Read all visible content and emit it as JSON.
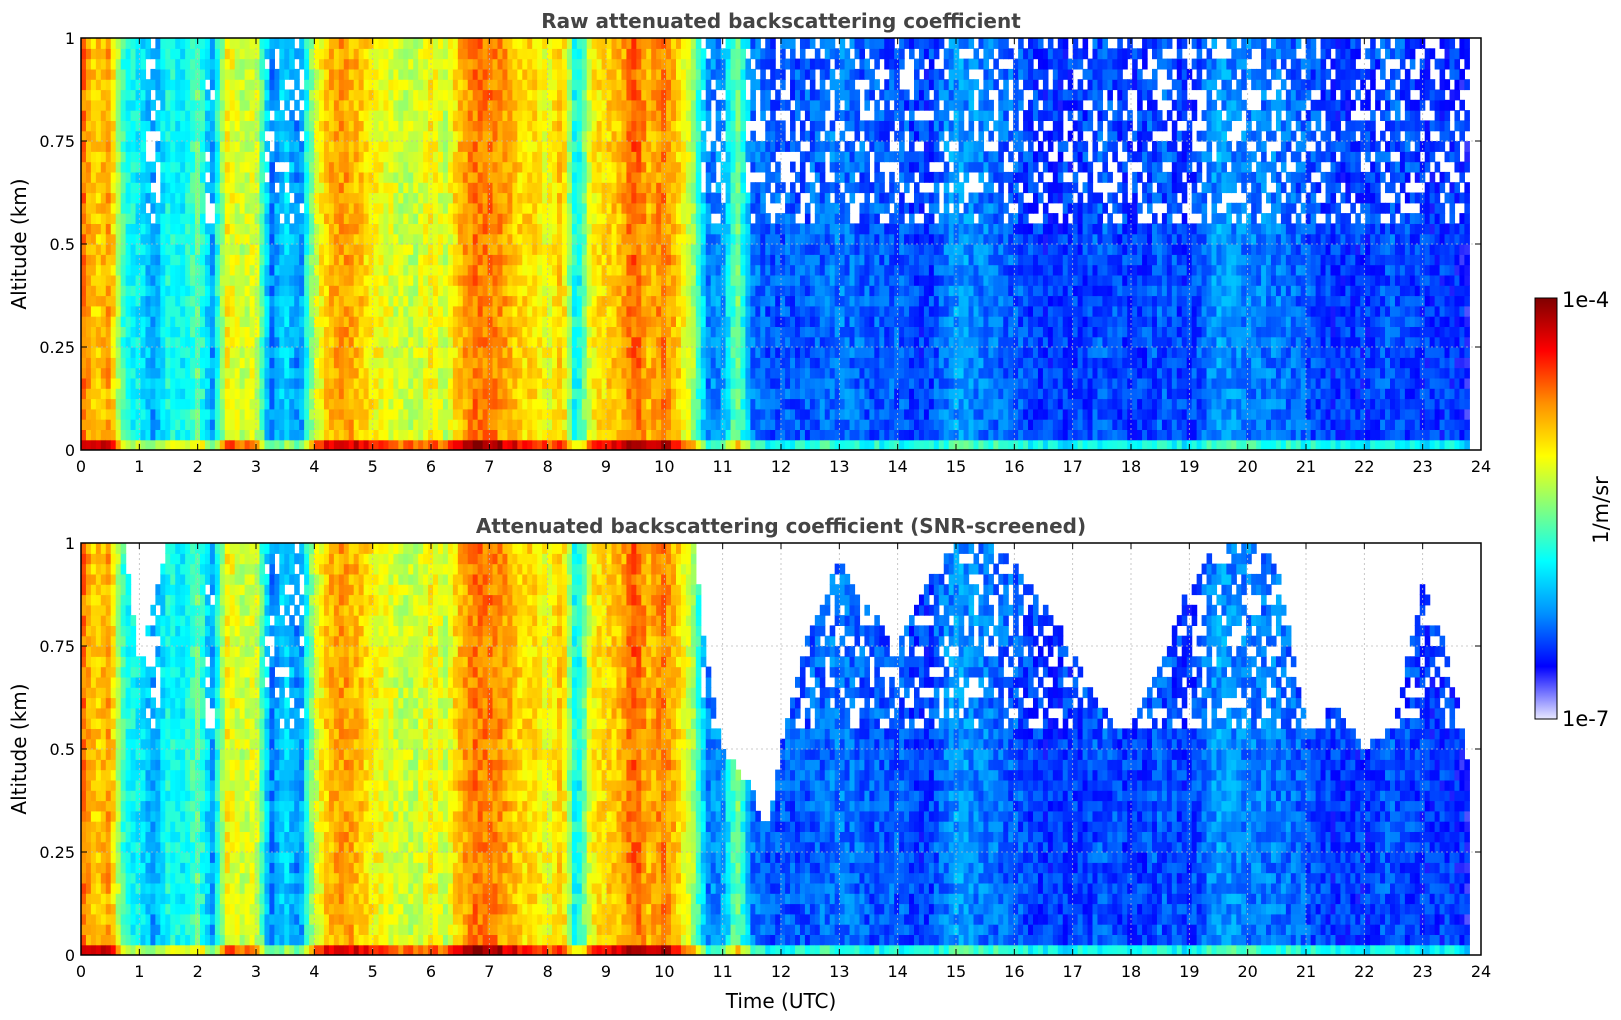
{
  "figure": {
    "colorbar": {
      "max_label": "1e-4",
      "min_label": "1e-7",
      "unit_label": "1/m/sr",
      "colormap": [
        "#e8e8ff",
        "#0000ff",
        "#0090ff",
        "#00ffff",
        "#80ff80",
        "#ffff00",
        "#ff9000",
        "#ff0000",
        "#800000"
      ]
    },
    "xlabel": "Time (UTC)"
  },
  "chart_data": [
    {
      "type": "heatmap",
      "title": "Raw attenuated backscattering coefficient",
      "xlabel": "",
      "ylabel": "Altitude (km)",
      "xlim": [
        0,
        24
      ],
      "ylim": [
        0,
        1
      ],
      "xticks": [
        "0",
        "1",
        "2",
        "3",
        "4",
        "5",
        "6",
        "7",
        "8",
        "9",
        "10",
        "11",
        "12",
        "13",
        "14",
        "15",
        "16",
        "17",
        "18",
        "19",
        "20",
        "21",
        "22",
        "23",
        "24"
      ],
      "yticks": [
        "0",
        "0.25",
        "0.5",
        "0.75",
        "1"
      ],
      "grid": true,
      "color_scale": "log10 of backscatter, 1e-7 to 1e-4 1/m/sr",
      "x": [
        0,
        0.25,
        0.5,
        0.75,
        1,
        1.25,
        1.5,
        1.75,
        2,
        2.25,
        2.5,
        2.75,
        3,
        3.25,
        3.5,
        3.75,
        4,
        4.25,
        4.5,
        4.75,
        5,
        5.25,
        5.5,
        5.75,
        6,
        6.25,
        6.5,
        6.75,
        7,
        7.25,
        7.5,
        7.75,
        8,
        8.25,
        8.5,
        8.75,
        9,
        9.25,
        9.5,
        9.75,
        10,
        10.25,
        10.5,
        10.75,
        11,
        11.25,
        11.5,
        11.75,
        12,
        12.5,
        13,
        13.5,
        14,
        14.5,
        15,
        15.5,
        16,
        16.5,
        17,
        17.5,
        18,
        18.5,
        19,
        19.5,
        20,
        20.5,
        21,
        21.5,
        22,
        22.5,
        23,
        23.5,
        23.8
      ],
      "log10_backscatter_typical": [
        -4.6,
        -5.0,
        -4.8,
        -5.8,
        -5.9,
        -6.2,
        -5.8,
        -5.9,
        -5.6,
        -6.2,
        -5.1,
        -5.3,
        -5.2,
        -6.3,
        -6.0,
        -6.3,
        -5.3,
        -4.9,
        -4.8,
        -4.9,
        -5.1,
        -5.2,
        -5.3,
        -5.3,
        -5.1,
        -5.3,
        -4.9,
        -4.7,
        -4.7,
        -4.8,
        -5.0,
        -5.0,
        -5.2,
        -4.9,
        -6.0,
        -5.1,
        -5.0,
        -4.9,
        -4.6,
        -4.9,
        -4.7,
        -5.0,
        -5.4,
        -6.3,
        -6.2,
        -5.5,
        -6.3,
        -6.4,
        -6.4,
        -6.4,
        -6.3,
        -6.4,
        -6.4,
        -6.5,
        -6.2,
        -6.3,
        -6.4,
        -6.5,
        -6.5,
        -6.4,
        -6.5,
        -6.4,
        -6.5,
        -6.2,
        -6.3,
        -6.3,
        -6.4,
        -6.5,
        -6.5,
        -6.4,
        -6.5,
        -6.5,
        -6.6
      ]
    },
    {
      "type": "heatmap",
      "title": "Attenuated backscattering coefficient (SNR-screened)",
      "xlabel": "Time (UTC)",
      "ylabel": "Altitude (km)",
      "xlim": [
        0,
        24
      ],
      "ylim": [
        0,
        1
      ],
      "xticks": [
        "0",
        "1",
        "2",
        "3",
        "4",
        "5",
        "6",
        "7",
        "8",
        "9",
        "10",
        "11",
        "12",
        "13",
        "14",
        "15",
        "16",
        "17",
        "18",
        "19",
        "20",
        "21",
        "22",
        "23",
        "24"
      ],
      "yticks": [
        "0",
        "0.25",
        "0.5",
        "0.75",
        "1"
      ],
      "grid": true,
      "color_scale": "log10 of backscatter, 1e-7 to 1e-4 1/m/sr",
      "x": [
        0,
        0.25,
        0.5,
        0.75,
        1,
        1.25,
        1.5,
        1.75,
        2,
        2.25,
        2.5,
        2.75,
        3,
        3.25,
        3.5,
        3.75,
        4,
        4.25,
        4.5,
        4.75,
        5,
        5.25,
        5.5,
        5.75,
        6,
        6.25,
        6.5,
        6.75,
        7,
        7.25,
        7.5,
        7.75,
        8,
        8.25,
        8.5,
        8.75,
        9,
        9.25,
        9.5,
        9.75,
        10,
        10.25,
        10.5,
        10.75,
        11,
        11.25,
        11.5,
        11.75,
        12,
        12.5,
        13,
        13.5,
        14,
        14.5,
        15,
        15.5,
        16,
        16.5,
        17,
        17.5,
        18,
        18.5,
        19,
        19.5,
        20,
        20.5,
        21,
        21.5,
        22,
        22.5,
        23,
        23.5,
        23.8
      ],
      "log10_backscatter_typical": [
        -4.6,
        -5.0,
        -4.8,
        -5.8,
        -5.9,
        -6.2,
        -5.8,
        -5.9,
        -5.6,
        -6.2,
        -5.1,
        -5.3,
        -5.2,
        -6.3,
        -6.0,
        -6.3,
        -5.3,
        -4.9,
        -4.8,
        -4.9,
        -5.1,
        -5.2,
        -5.3,
        -5.3,
        -5.1,
        -5.3,
        -4.9,
        -4.7,
        -4.7,
        -4.8,
        -5.0,
        -5.0,
        -5.2,
        -4.9,
        -6.0,
        -5.1,
        -5.0,
        -4.9,
        -4.6,
        -4.9,
        -4.7,
        -5.0,
        -5.4,
        -6.3,
        -6.2,
        -5.5,
        -6.3,
        -6.4,
        -6.4,
        -6.4,
        -6.3,
        -6.4,
        -6.4,
        -6.5,
        -6.2,
        -6.3,
        -6.4,
        -6.5,
        -6.5,
        -6.4,
        -6.5,
        -6.4,
        -6.5,
        -6.2,
        -6.3,
        -6.3,
        -6.4,
        -6.5,
        -6.5,
        -6.4,
        -6.5,
        -6.5,
        -6.6
      ],
      "screened_top_altitude_km": [
        1,
        1,
        1,
        1,
        0.7,
        0.85,
        1,
        1,
        1,
        1,
        1,
        1,
        1,
        1,
        1,
        1,
        1,
        1,
        1,
        1,
        1,
        1,
        1,
        1,
        1,
        1,
        1,
        1,
        1,
        1,
        1,
        1,
        1,
        1,
        1,
        1,
        1,
        1,
        1,
        1,
        1,
        1,
        1,
        0.7,
        0.5,
        0.45,
        0.4,
        0.3,
        0.5,
        0.8,
        0.95,
        0.85,
        0.75,
        0.9,
        1,
        1,
        0.95,
        0.85,
        0.75,
        0.6,
        0.55,
        0.7,
        0.9,
        1,
        1,
        0.95,
        0.55,
        0.6,
        0.5,
        0.55,
        0.9,
        0.7,
        0.45
      ]
    }
  ]
}
